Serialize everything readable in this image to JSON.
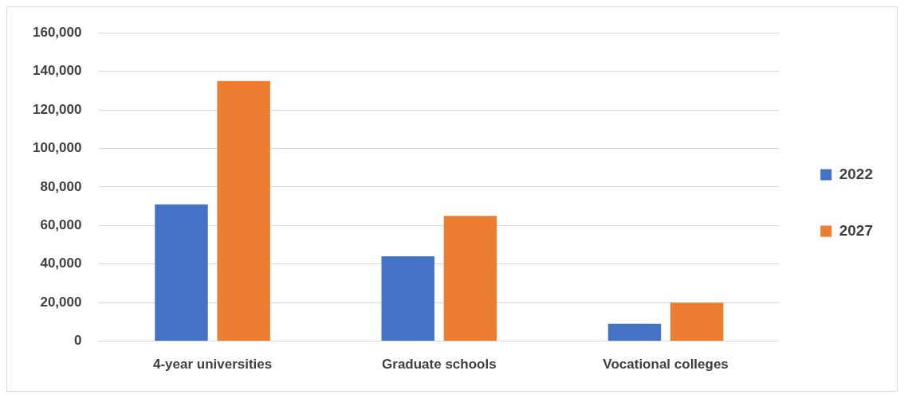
{
  "chart_data": {
    "type": "bar",
    "categories": [
      "4-year universities",
      "Graduate schools",
      "Vocational colleges"
    ],
    "series": [
      {
        "name": "2022",
        "color": "#4472c4",
        "values": [
          71000,
          44000,
          9000
        ]
      },
      {
        "name": "2027",
        "color": "#ed7d31",
        "values": [
          135000,
          65000,
          20000
        ]
      }
    ],
    "ylim": [
      0,
      160000
    ],
    "yticks": [
      {
        "value": 0,
        "label": "0"
      },
      {
        "value": 20000,
        "label": "20,000"
      },
      {
        "value": 40000,
        "label": "40,000"
      },
      {
        "value": 60000,
        "label": "60,000"
      },
      {
        "value": 80000,
        "label": "80,000"
      },
      {
        "value": 100000,
        "label": "100,000"
      },
      {
        "value": 120000,
        "label": "120,000"
      },
      {
        "value": 140000,
        "label": "140,000"
      },
      {
        "value": 160000,
        "label": "160,000"
      }
    ],
    "grid": "y",
    "legend": "right"
  }
}
